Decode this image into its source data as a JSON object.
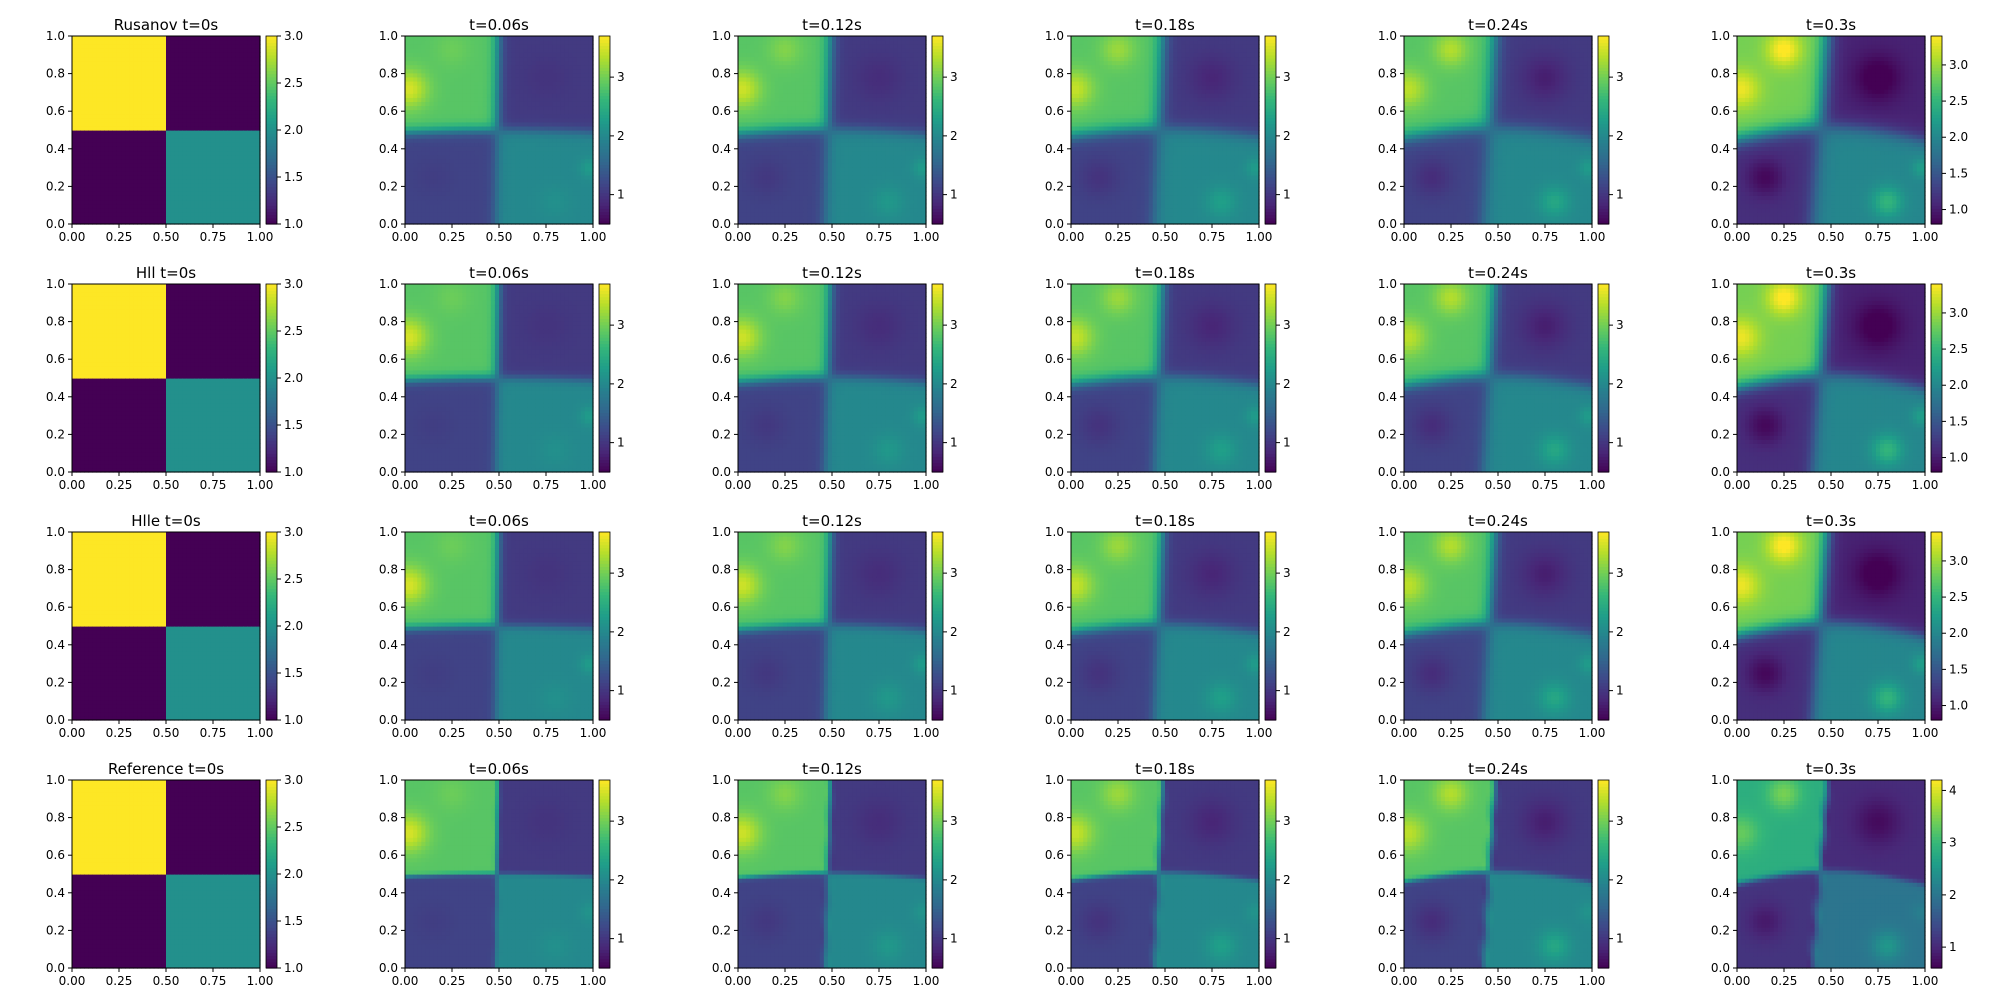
{
  "colormap": {
    "name": "viridis",
    "stops": [
      "#440154",
      "#482878",
      "#3e4989",
      "#31688e",
      "#26828e",
      "#1f9e89",
      "#35b779",
      "#6ece58",
      "#b5de2b",
      "#fde725"
    ]
  },
  "chart_data": {
    "type": "heatmap",
    "xlim": [
      0.0,
      1.0
    ],
    "ylim": [
      0.0,
      1.0
    ],
    "x_ticks": [
      "0.00",
      "0.25",
      "0.50",
      "0.75",
      "1.00"
    ],
    "y_ticks": [
      "0.0",
      "0.2",
      "0.4",
      "0.6",
      "0.8",
      "1.0"
    ],
    "grid": false,
    "rows": [
      {
        "method": "Rusanov",
        "panels": [
          {
            "title": "Rusanov t=0s",
            "t": 0,
            "cbar_range": [
              1.0,
              3.0
            ],
            "cbar_ticks": [
              "1.0",
              "1.5",
              "2.0",
              "2.5",
              "3.0"
            ]
          },
          {
            "title": "t=0.06s",
            "t": 0.06,
            "cbar_range": [
              0.5,
              3.7
            ],
            "cbar_ticks": [
              "1",
              "2",
              "3"
            ]
          },
          {
            "title": "t=0.12s",
            "t": 0.12,
            "cbar_range": [
              0.5,
              3.7
            ],
            "cbar_ticks": [
              "1",
              "2",
              "3"
            ]
          },
          {
            "title": "t=0.18s",
            "t": 0.18,
            "cbar_range": [
              0.5,
              3.7
            ],
            "cbar_ticks": [
              "1",
              "2",
              "3"
            ]
          },
          {
            "title": "t=0.24s",
            "t": 0.24,
            "cbar_range": [
              0.5,
              3.7
            ],
            "cbar_ticks": [
              "1",
              "2",
              "3"
            ]
          },
          {
            "title": "t=0.3s",
            "t": 0.3,
            "cbar_range": [
              0.8,
              3.4
            ],
            "cbar_ticks": [
              "1.0",
              "1.5",
              "2.0",
              "2.5",
              "3.0"
            ]
          }
        ]
      },
      {
        "method": "Hll",
        "panels": [
          {
            "title": "Hll t=0s",
            "t": 0,
            "cbar_range": [
              1.0,
              3.0
            ],
            "cbar_ticks": [
              "1.0",
              "1.5",
              "2.0",
              "2.5",
              "3.0"
            ]
          },
          {
            "title": "t=0.06s",
            "t": 0.06,
            "cbar_range": [
              0.5,
              3.7
            ],
            "cbar_ticks": [
              "1",
              "2",
              "3"
            ]
          },
          {
            "title": "t=0.12s",
            "t": 0.12,
            "cbar_range": [
              0.5,
              3.7
            ],
            "cbar_ticks": [
              "1",
              "2",
              "3"
            ]
          },
          {
            "title": "t=0.18s",
            "t": 0.18,
            "cbar_range": [
              0.5,
              3.7
            ],
            "cbar_ticks": [
              "1",
              "2",
              "3"
            ]
          },
          {
            "title": "t=0.24s",
            "t": 0.24,
            "cbar_range": [
              0.5,
              3.7
            ],
            "cbar_ticks": [
              "1",
              "2",
              "3"
            ]
          },
          {
            "title": "t=0.3s",
            "t": 0.3,
            "cbar_range": [
              0.8,
              3.4
            ],
            "cbar_ticks": [
              "1.0",
              "1.5",
              "2.0",
              "2.5",
              "3.0"
            ]
          }
        ]
      },
      {
        "method": "Hlle",
        "panels": [
          {
            "title": "Hlle t=0s",
            "t": 0,
            "cbar_range": [
              1.0,
              3.0
            ],
            "cbar_ticks": [
              "1.0",
              "1.5",
              "2.0",
              "2.5",
              "3.0"
            ]
          },
          {
            "title": "t=0.06s",
            "t": 0.06,
            "cbar_range": [
              0.5,
              3.7
            ],
            "cbar_ticks": [
              "1",
              "2",
              "3"
            ]
          },
          {
            "title": "t=0.12s",
            "t": 0.12,
            "cbar_range": [
              0.5,
              3.7
            ],
            "cbar_ticks": [
              "1",
              "2",
              "3"
            ]
          },
          {
            "title": "t=0.18s",
            "t": 0.18,
            "cbar_range": [
              0.5,
              3.7
            ],
            "cbar_ticks": [
              "1",
              "2",
              "3"
            ]
          },
          {
            "title": "t=0.24s",
            "t": 0.24,
            "cbar_range": [
              0.5,
              3.7
            ],
            "cbar_ticks": [
              "1",
              "2",
              "3"
            ]
          },
          {
            "title": "t=0.3s",
            "t": 0.3,
            "cbar_range": [
              0.8,
              3.4
            ],
            "cbar_ticks": [
              "1.0",
              "1.5",
              "2.0",
              "2.5",
              "3.0"
            ]
          }
        ]
      },
      {
        "method": "Reference",
        "panels": [
          {
            "title": "Reference t=0s",
            "t": 0,
            "cbar_range": [
              1.0,
              3.0
            ],
            "cbar_ticks": [
              "1.0",
              "1.5",
              "2.0",
              "2.5",
              "3.0"
            ]
          },
          {
            "title": "t=0.06s",
            "t": 0.06,
            "cbar_range": [
              0.5,
              3.7
            ],
            "cbar_ticks": [
              "1",
              "2",
              "3"
            ]
          },
          {
            "title": "t=0.12s",
            "t": 0.12,
            "cbar_range": [
              0.5,
              3.7
            ],
            "cbar_ticks": [
              "1",
              "2",
              "3"
            ]
          },
          {
            "title": "t=0.18s",
            "t": 0.18,
            "cbar_range": [
              0.5,
              3.7
            ],
            "cbar_ticks": [
              "1",
              "2",
              "3"
            ]
          },
          {
            "title": "t=0.24s",
            "t": 0.24,
            "cbar_range": [
              0.5,
              3.7
            ],
            "cbar_ticks": [
              "1",
              "2",
              "3"
            ]
          },
          {
            "title": "t=0.3s",
            "t": 0.3,
            "cbar_range": [
              0.6,
              4.2
            ],
            "cbar_ticks": [
              "1",
              "2",
              "3",
              "4"
            ]
          }
        ]
      }
    ]
  }
}
